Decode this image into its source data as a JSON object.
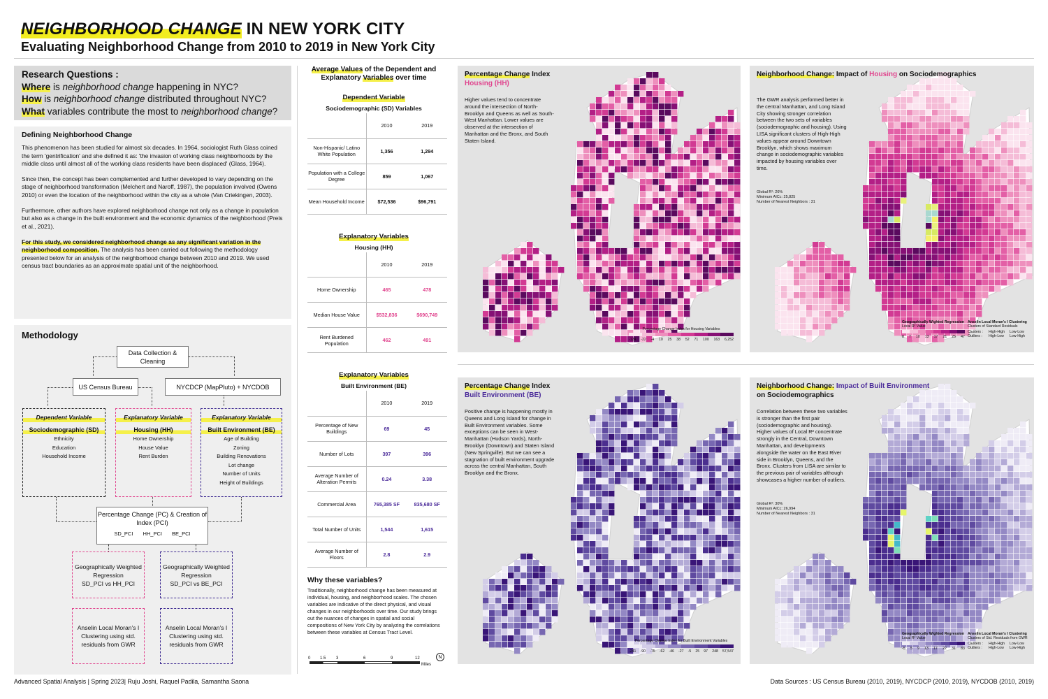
{
  "header": {
    "title_hl": "NEIGHBORHOOD CHANGE",
    "title_rest": " IN NEW YORK CITY",
    "subtitle": "Evaluating Neighborhood Change from 2010 to 2019 in New York City"
  },
  "research": {
    "heading": "Research Questions :",
    "q1_kw": "Where",
    "q1_pre": " is ",
    "q1_it": "neighborhood change",
    "q1_post": " happening in NYC?",
    "q2_kw": "How",
    "q2_pre": " is ",
    "q2_it": "neighborhood change",
    "q2_post": " distributed throughout NYC?",
    "q3_kw": "What",
    "q3_pre": " variables contribute the most to ",
    "q3_it": "neighborhood change",
    "q3_post": "?"
  },
  "definition": {
    "heading": "Defining Neighborhood Change",
    "p1": "This phenomenon has been studied for almost six decades. In 1964, sociologist Ruth Glass coined the term 'gentrification' and she defined it as: 'the invasion of working class neighborhoods by the middle class until almost all of the working class residents have been displaced' (Glass, 1964).",
    "p2": "Since then, the concept has been complemented and further developed to vary depending on the stage of neighborhood transformation (Melchert and Naroff, 1987), the population involved (Owens 2010) or even the location of the neighborhood within the city as a whole (Van Criekingen, 2003).",
    "p3": "Furthermore, other authors have explored neighborhood change not only as a change in population but also as a change in the built environment and the economic dynamics of the neighborhood (Preis et al., 2021).",
    "p4_hl": "For this study, we considered neighborhood change as any significant variation in the neighborhood composition.",
    "p4_rest": " The analysis has been carried out following the methodology presented below for an analysis of the neighborhood change between 2010 and 2019. We used census tract boundaries as an approximate spatial unit of the neighborhood."
  },
  "methodology": {
    "heading": "Methodology",
    "data_collection": "Data Collection & Cleaning",
    "census": "US Census Bureau",
    "nycdcp": "NYCDCP (MapPluto) + NYCDOB",
    "dep_label": "Dependent Variable",
    "dep_sub": "Sociodemographic (SD)",
    "dep_items": [
      "Ethnicity",
      "Education",
      "Household Income"
    ],
    "exp1_label": "Explanatory Variable",
    "exp1_sub": "Housing (HH)",
    "exp1_items": [
      "Home Ownership",
      "House Value",
      "Rent Burden"
    ],
    "exp2_label": "Explanatory Variable",
    "exp2_sub": "Built Environment (BE)",
    "exp2_items": [
      "Age of Building",
      "Zoning",
      "Building Renovations",
      "Lot change",
      "Number of Units",
      "Height of Buildings"
    ],
    "pc_title": "Percentage Change (PC) & Creation of Index (PCI)",
    "pc_items": [
      "SD_PCI",
      "HH_PCI",
      "BE_PCI"
    ],
    "gwr1": "Geographically Weighted Regression",
    "gwr1_sub": "SD_PCI vs HH_PCI",
    "gwr2": "Geographically Weighted Regression",
    "gwr2_sub": "SD_PCI vs BE_PCI",
    "lisa1": "Anselin Local Moran's I Clustering using std. residuals from GWR",
    "lisa2": "Anselin Local Moran's I Clustering using std. residuals from GWR"
  },
  "middle": {
    "avg_title_a": "Average Values",
    "avg_title_b": " of the Dependent and Explanatory ",
    "avg_title_c": "Variables",
    "avg_title_d": " over time",
    "dep_head": "Dependent Variable",
    "dep_sub": "Sociodemographic (SD) Variables",
    "years": [
      "2010",
      "2019"
    ],
    "sd_rows": [
      {
        "label": "Non-Hispanic/ Latino White Population",
        "v2010": "1,356",
        "v2019": "1,294"
      },
      {
        "label": "Population with a College Degree",
        "v2010": "859",
        "v2019": "1,067"
      },
      {
        "label": "Mean Household Income",
        "v2010": "$72,536",
        "v2019": "$96,791"
      }
    ],
    "hh_head": "Explanatory Variables",
    "hh_sub": "Housing (HH)",
    "hh_rows": [
      {
        "label": "Home Ownership",
        "v2010": "465",
        "v2019": "478"
      },
      {
        "label": "Median House Value",
        "v2010": "$532,836",
        "v2019": "$690,749"
      },
      {
        "label": "Rent Burdened Population",
        "v2010": "462",
        "v2019": "491"
      }
    ],
    "be_head": "Explanatory Variables",
    "be_sub": "Built Environment (BE)",
    "be_rows": [
      {
        "label": "Percentage of New Buildings",
        "v2010": "69",
        "v2019": "45"
      },
      {
        "label": "Number of Lots",
        "v2010": "397",
        "v2019": "396"
      },
      {
        "label": "Average Number of Alteration Permits",
        "v2010": "0.24",
        "v2019": "3.38"
      },
      {
        "label": "Commercial Area",
        "v2010": "765,385 SF",
        "v2019": "835,680 SF"
      },
      {
        "label": "Total Number of Units",
        "v2010": "1,544",
        "v2019": "1,615"
      },
      {
        "label": "Average Number of Floors",
        "v2010": "2.8",
        "v2019": "2.9"
      }
    ],
    "why_head": "Why these variables?",
    "why_text": "Traditionally, neighborhood change has been measured at individual, housing, and neighborhood scales. The chosen variables are indicative of the direct physical, and visual changes in our neighborhoods over time. Our study brings out the nuances of changes in spatial and social compositions of New York City by analyzing the correlations between these variables at Census Tract Level.",
    "scale_ticks": [
      "0",
      "1.5",
      "3",
      "6",
      "9",
      "12"
    ],
    "scale_unit": "Miles",
    "north": "N"
  },
  "maps": {
    "m1_title_a": "Percentage Change",
    "m1_title_b": " Index",
    "m1_title_c": "Housing (HH)",
    "m1_desc": "Higher values tend to concentrate around the intersection of North-Brooklyn and Queens as well as South-West Manhattan. Lower values are observed at the intersection of Manhattan and the Bronx, and South Staten Island.",
    "m1_legend_title": "Percentage Change Index for Housing Variables",
    "m1_legend": [
      "-124",
      "-22",
      "-4",
      "10",
      "25",
      "38",
      "52",
      "71",
      "100",
      "163",
      "6,252"
    ],
    "m2_title_a": "Neighborhood Change:",
    "m2_title_b": " Impact of ",
    "m2_title_c": "Housing",
    "m2_title_d": " on Sociodemographics",
    "m2_desc": "The GWR analysis performed better in the central Manhattan, and Long Island City showing stronger correlation between the two sets of variables (sociodemographic and housing). Using LISA significant clusters of High-High values appear around Downtown Brooklyn, which shows maximum change in sociodemographic variables impacted by housing variables over time.",
    "m2_stats": [
      "Global R²: 26%",
      "Minimum AICc: 25,825",
      "Number of Nearest Neighbors : 31"
    ],
    "m2_legend_gwr": "Geographically Wighted Regression",
    "m2_legend_gwr_sub": "Local R² Value",
    "m2_legend_gwr_vals": [
      "8",
      "7",
      "10",
      "13",
      "17",
      "21",
      "25",
      "47"
    ],
    "m2_legend_lisa": "Anselin Local Moran's I Clustering",
    "m2_legend_lisa_sub": "Clusters of Standard Residuals",
    "m2_legend_lisa_items": [
      "Clusters :",
      "High-High",
      "Low-Low",
      "Outliers :",
      "High-Low",
      "Low-High"
    ],
    "m3_title_a": "Percentage Change",
    "m3_title_b": " Index",
    "m3_title_c": "Built Environment (BE)",
    "m3_desc": "Positive change is happening mostly in Queens and Long Island for change in Built Environment variables. Some exceptions can be seen in West-Manhattan (Hudson Yards), North-Brooklyn (Downtown) and Staten Island (New Springville). But we can see a stagnation of built environment upgrade across the central Manhattan, South Brooklyn and the Bronx.",
    "m3_legend_title": "Percentage Change Index for Built Environment Variables",
    "m3_legend": [
      "-241",
      "-90",
      "-75",
      "-62",
      "-46",
      "-27",
      "-5",
      "25",
      "97",
      "248",
      "57,547"
    ],
    "m4_title_a": "Neighborhood Change:",
    "m4_title_b": " Impact of Built Environment",
    "m4_title_c": " on Sociodemographics",
    "m4_desc": "Correlation between these two variables is stronger than the first pair (sociodemographic and housing). Higher values of Local R² concentrate strongly in the Central, Downtown Manhattan, and developments alongside the water on the East River side in Brooklyn, Queens, and the Bronx. Clusters from LISA are similar to the previous pair of variables although showcases a higher number of outliers.",
    "m4_stats": [
      "Global R²: 30%",
      "Minimum AICc: 26,994",
      "Number of Nearest Neighbors : 31"
    ],
    "m4_legend_gwr": "Geographically Wighted Regression",
    "m4_legend_gwr_sub": "Local R² Value",
    "m4_legend_gwr_vals": [
      "-5",
      "5",
      "9",
      "13",
      "17",
      "22",
      "31",
      "83"
    ],
    "m4_legend_lisa": "Anselin Local Moran's I Clustering",
    "m4_legend_lisa_sub": "Clusters of Std. Residuals from GWR",
    "m4_legend_lisa_items": [
      "Clusters :",
      "High-High",
      "Low-Low",
      "Outliers :",
      "High-Low",
      "Low-High"
    ]
  },
  "footer": {
    "left": "Advanced Spatial Analysis | Spring 2023| Ruju Joshi, Raquel Padila, Samantha Saona",
    "right": "Data Sources : US Census Bureau (2010, 2019), NYCDCP (2010, 2019), NYCDOB (2010, 2019)"
  },
  "colors": {
    "housing_ramp": [
      "#fbe4ef",
      "#f5bcd7",
      "#ee8fbd",
      "#e35fa6",
      "#d23a93",
      "#b31f86",
      "#861075",
      "#5a0a5e"
    ],
    "be_ramp": [
      "#efecf6",
      "#d3cde8",
      "#b3aad6",
      "#9388c4",
      "#7767b1",
      "#5f4aa0",
      "#4b2e8f",
      "#391577"
    ],
    "highlight": "#f2ec1f",
    "accent_pink": "#e0458e",
    "accent_purple": "#4b2b9a"
  }
}
